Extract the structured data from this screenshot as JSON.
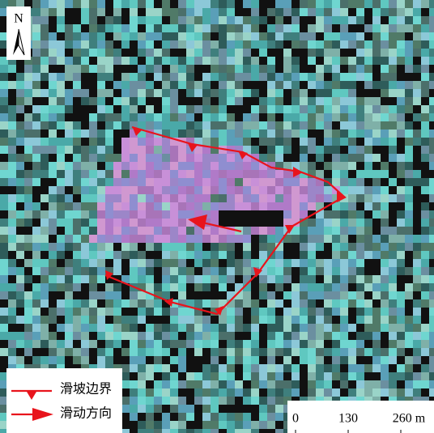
{
  "north_arrow": {
    "label": "N"
  },
  "legend": {
    "items": [
      {
        "label": "滑坡边界"
      },
      {
        "label": "滑动方向"
      }
    ]
  },
  "scale_bar": {
    "labels": [
      "0",
      "130",
      "260 m"
    ]
  }
}
